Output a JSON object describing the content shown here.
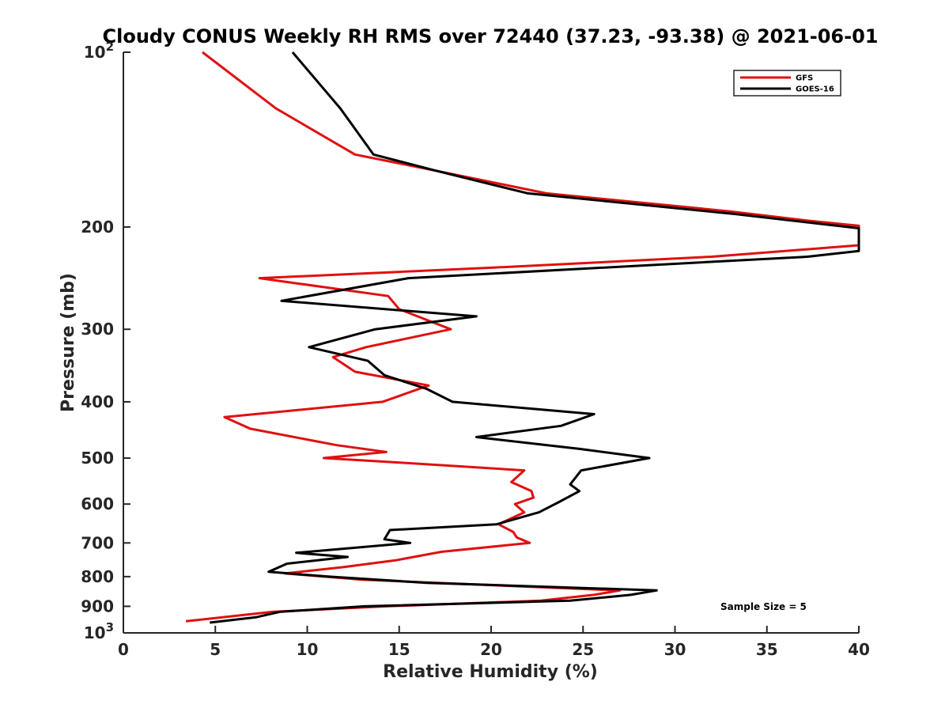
{
  "chart_data": {
    "type": "line",
    "title": "Cloudy CONUS Weekly RH RMS over 72440 (37.23, -93.38) @ 2021-06-01",
    "xlabel": "Relative Humidity (%)",
    "ylabel": "Pressure (mb)",
    "xlim": [
      0,
      40
    ],
    "ylim": [
      100,
      1000
    ],
    "y_scale": "log",
    "y_reversed": true,
    "grid": false,
    "x_ticks": [
      "0",
      "5",
      "10",
      "15",
      "20",
      "25",
      "30",
      "35",
      "40"
    ],
    "y_ticks": [
      {
        "value": 100,
        "label": "10",
        "sup": "2"
      },
      {
        "value": 200,
        "label": "200"
      },
      {
        "value": 300,
        "label": "300"
      },
      {
        "value": 400,
        "label": "400"
      },
      {
        "value": 500,
        "label": "500"
      },
      {
        "value": 600,
        "label": "600"
      },
      {
        "value": 700,
        "label": "700"
      },
      {
        "value": 800,
        "label": "800"
      },
      {
        "value": 900,
        "label": "900"
      },
      {
        "value": 1000,
        "label": "10",
        "sup": "3"
      }
    ],
    "legend_position": "top-right",
    "annotation": "Sample Size = 5",
    "series": [
      {
        "name": "GFS",
        "color": "#e01010",
        "points": [
          [
            4.3,
            100
          ],
          [
            8.3,
            125
          ],
          [
            12.6,
            150
          ],
          [
            17.0,
            160
          ],
          [
            23.0,
            175
          ],
          [
            33.0,
            188
          ],
          [
            37.2,
            195
          ],
          [
            40,
            199
          ],
          [
            40,
            215
          ],
          [
            32.0,
            225
          ],
          [
            20.0,
            235
          ],
          [
            7.4,
            245
          ],
          [
            14.4,
            263
          ],
          [
            15.0,
            277
          ],
          [
            17.8,
            300
          ],
          [
            13.2,
            322
          ],
          [
            11.4,
            335
          ],
          [
            12.6,
            355
          ],
          [
            16.6,
            375
          ],
          [
            14.1,
            400
          ],
          [
            5.5,
            425
          ],
          [
            6.9,
            445
          ],
          [
            11.6,
            475
          ],
          [
            14.3,
            488
          ],
          [
            10.9,
            500
          ],
          [
            14.6,
            508
          ],
          [
            21.8,
            525
          ],
          [
            21.1,
            550
          ],
          [
            22.2,
            570
          ],
          [
            22.3,
            585
          ],
          [
            21.3,
            600
          ],
          [
            21.8,
            620
          ],
          [
            20.4,
            650
          ],
          [
            21.2,
            670
          ],
          [
            21.4,
            685
          ],
          [
            22.1,
            700
          ],
          [
            17.3,
            725
          ],
          [
            14.8,
            750
          ],
          [
            12.0,
            770
          ],
          [
            8.8,
            790
          ],
          [
            13.0,
            810
          ],
          [
            21.0,
            830
          ],
          [
            27.0,
            845
          ],
          [
            25.6,
            860
          ],
          [
            22.7,
            880
          ],
          [
            14.3,
            900
          ],
          [
            8.1,
            920
          ],
          [
            3.4,
            955
          ]
        ]
      },
      {
        "name": "GOES-16",
        "color": "#000000",
        "points": [
          [
            9.2,
            100
          ],
          [
            11.8,
            125
          ],
          [
            13.6,
            150
          ],
          [
            17.0,
            160
          ],
          [
            22.0,
            175
          ],
          [
            33.3,
            190
          ],
          [
            40,
            201
          ],
          [
            40,
            220
          ],
          [
            37.2,
            225
          ],
          [
            26.0,
            235
          ],
          [
            15.5,
            245
          ],
          [
            8.6,
            268
          ],
          [
            19.2,
            285
          ],
          [
            13.7,
            300
          ],
          [
            10.1,
            322
          ],
          [
            13.3,
            340
          ],
          [
            14.2,
            360
          ],
          [
            16.5,
            380
          ],
          [
            17.9,
            400
          ],
          [
            25.6,
            420
          ],
          [
            23.8,
            440
          ],
          [
            19.2,
            460
          ],
          [
            24.8,
            482
          ],
          [
            28.6,
            500
          ],
          [
            24.9,
            525
          ],
          [
            24.3,
            555
          ],
          [
            24.8,
            570
          ],
          [
            23.7,
            595
          ],
          [
            22.6,
            620
          ],
          [
            20.3,
            650
          ],
          [
            14.5,
            665
          ],
          [
            14.2,
            690
          ],
          [
            15.6,
            700
          ],
          [
            9.4,
            728
          ],
          [
            12.2,
            740
          ],
          [
            8.9,
            760
          ],
          [
            7.9,
            785
          ],
          [
            11.2,
            800
          ],
          [
            16.5,
            820
          ],
          [
            29.0,
            845
          ],
          [
            27.6,
            860
          ],
          [
            24.3,
            880
          ],
          [
            13.1,
            900
          ],
          [
            8.5,
            920
          ],
          [
            7.2,
            940
          ],
          [
            4.7,
            960
          ]
        ]
      }
    ]
  }
}
